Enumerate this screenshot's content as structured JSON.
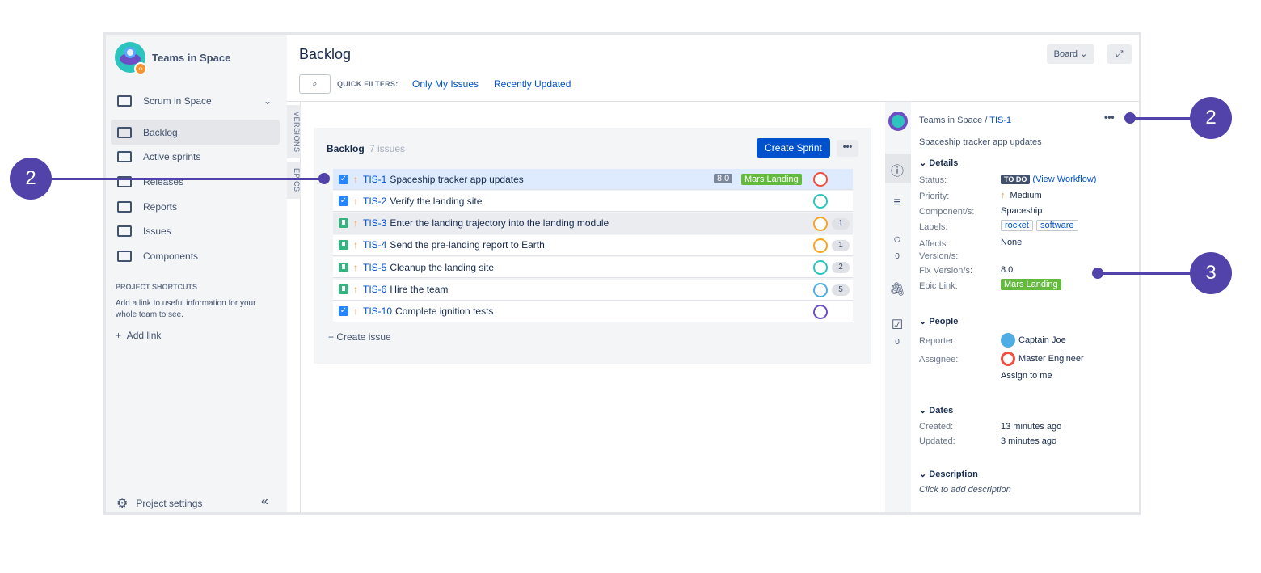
{
  "sidebar": {
    "project_name": "Teams in Space",
    "board_name": "Scrum in Space",
    "items": [
      {
        "label": "Backlog"
      },
      {
        "label": "Active sprints"
      },
      {
        "label": "Releases"
      },
      {
        "label": "Reports"
      },
      {
        "label": "Issues"
      },
      {
        "label": "Components"
      }
    ],
    "shortcuts_heading": "PROJECT SHORTCUTS",
    "shortcuts_text": "Add a link to useful information for your whole team to see.",
    "add_link": "Add link",
    "settings": "Project settings"
  },
  "header": {
    "title": "Backlog",
    "quick_filters_label": "QUICK FILTERS:",
    "filters": [
      "Only My Issues",
      "Recently Updated"
    ],
    "board_button": "Board"
  },
  "side_tabs": [
    "VERSIONS",
    "EPICS"
  ],
  "backlog": {
    "title": "Backlog",
    "count": "7 issues",
    "create_sprint": "Create Sprint",
    "create_issue": "Create issue",
    "issues": [
      {
        "key": "TIS-1",
        "summary": "Spaceship tracker app updates",
        "type": "task",
        "version": "8.0",
        "epic": "Mars Landing",
        "count": ""
      },
      {
        "key": "TIS-2",
        "summary": "Verify the landing site",
        "type": "task",
        "count": ""
      },
      {
        "key": "TIS-3",
        "summary": "Enter the landing trajectory into the landing module",
        "type": "story",
        "count": "1"
      },
      {
        "key": "TIS-4",
        "summary": "Send the pre-landing report to Earth",
        "type": "story",
        "count": "1"
      },
      {
        "key": "TIS-5",
        "summary": "Cleanup the landing site",
        "type": "story",
        "count": "2"
      },
      {
        "key": "TIS-6",
        "summary": "Hire the team",
        "type": "story",
        "count": "5"
      },
      {
        "key": "TIS-10",
        "summary": "Complete ignition tests",
        "type": "task",
        "count": ""
      }
    ]
  },
  "detail": {
    "breadcrumb_project": "Teams in Space",
    "breadcrumb_key": "TIS-1",
    "summary": "Spaceship tracker app updates",
    "details_heading": "Details",
    "status_label": "Status:",
    "status": "TO DO",
    "view_workflow": "(View Workflow)",
    "priority_label": "Priority:",
    "priority": "Medium",
    "component_label": "Component/s:",
    "component": "Spaceship",
    "labels_label": "Labels:",
    "labels": [
      "rocket",
      "software"
    ],
    "affects_label": "Affects Version/s:",
    "affects": "None",
    "fix_label": "Fix Version/s:",
    "fix": "8.0",
    "epic_label": "Epic Link:",
    "epic": "Mars Landing",
    "people_heading": "People",
    "reporter_label": "Reporter:",
    "reporter": "Captain Joe",
    "assignee_label": "Assignee:",
    "assignee": "Master Engineer",
    "assign_to_me": "Assign to me",
    "dates_heading": "Dates",
    "created_label": "Created:",
    "created": "13 minutes ago",
    "updated_label": "Updated:",
    "updated": "3 minutes ago",
    "description_heading": "Description",
    "description_placeholder": "Click to add description",
    "comments_count": "0",
    "subtasks_count": "0"
  },
  "callouts": [
    "2",
    "2",
    "3"
  ],
  "colors": {
    "accent": "#0052cc",
    "callout": "#5243aa",
    "epic": "#63ba3c"
  }
}
